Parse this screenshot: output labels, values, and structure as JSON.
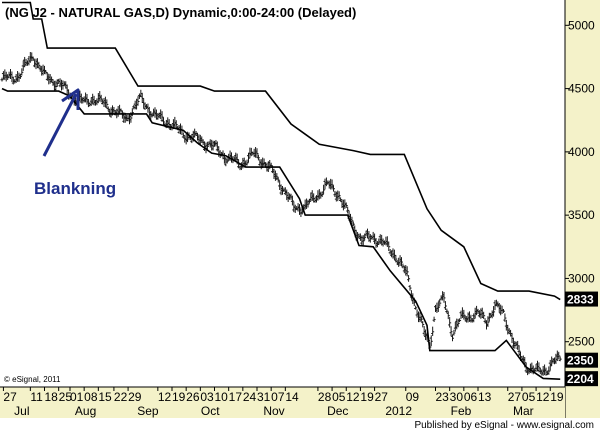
{
  "window": {
    "title": "(NG J2 - NATURAL GAS,D) Dynamic,0:00-24:00 (Delayed)",
    "copyright": "© eSignal, 2011",
    "footer": "Published by eSignal - www.esignal.com"
  },
  "colors": {
    "background": "#ffffff",
    "price_bars": "#1a1a1a",
    "channel": "#000000",
    "annotation": "#1f2f8c",
    "axis_panel": "#f4f2c9",
    "label_box": "#000000"
  },
  "annotation": {
    "text": "Blankning",
    "arrow": "arrow-icon"
  },
  "chart_data": {
    "type": "line",
    "title": "(NG J2 - NATURAL GAS,D) Dynamic,0:00-24:00 (Delayed)",
    "ylim": [
      2150,
      5200
    ],
    "y_ticks": [
      2500,
      3000,
      3500,
      4000,
      4500,
      5000
    ],
    "y_tick_labels": [
      "2500",
      "3000",
      "3500",
      "4000",
      "4500",
      "5000"
    ],
    "price_labels": [
      {
        "value": 2833,
        "text": "2833"
      },
      {
        "value": 2350,
        "text": "2350"
      },
      {
        "value": 2204,
        "text": "2204"
      }
    ],
    "x_day_labels": [
      {
        "i": 1,
        "t": "27"
      },
      {
        "i": 20,
        "t": "11"
      },
      {
        "i": 30,
        "t": "18"
      },
      {
        "i": 40,
        "t": "25"
      },
      {
        "i": 48,
        "t": "01"
      },
      {
        "i": 58,
        "t": "08"
      },
      {
        "i": 68,
        "t": "15"
      },
      {
        "i": 79,
        "t": "22"
      },
      {
        "i": 89,
        "t": "29"
      },
      {
        "i": 110,
        "t": "12"
      },
      {
        "i": 120,
        "t": "19"
      },
      {
        "i": 130,
        "t": "26"
      },
      {
        "i": 140,
        "t": "03"
      },
      {
        "i": 150,
        "t": "10"
      },
      {
        "i": 160,
        "t": "17"
      },
      {
        "i": 170,
        "t": "24"
      },
      {
        "i": 180,
        "t": "31"
      },
      {
        "i": 190,
        "t": "07"
      },
      {
        "i": 200,
        "t": "14"
      },
      {
        "i": 223,
        "t": "28"
      },
      {
        "i": 233,
        "t": "05"
      },
      {
        "i": 243,
        "t": "12"
      },
      {
        "i": 253,
        "t": "19"
      },
      {
        "i": 263,
        "t": "27"
      },
      {
        "i": 285,
        "t": "09"
      },
      {
        "i": 306,
        "t": "23"
      },
      {
        "i": 316,
        "t": "30"
      },
      {
        "i": 326,
        "t": "06"
      },
      {
        "i": 336,
        "t": "13"
      },
      {
        "i": 357,
        "t": "27"
      },
      {
        "i": 367,
        "t": "05"
      },
      {
        "i": 377,
        "t": "12"
      },
      {
        "i": 387,
        "t": "19"
      }
    ],
    "x_month_labels": [
      {
        "i": 14,
        "t": "Jul"
      },
      {
        "i": 59,
        "t": "Aug"
      },
      {
        "i": 103,
        "t": "Sep"
      },
      {
        "i": 147,
        "t": "Oct"
      },
      {
        "i": 192,
        "t": "Nov"
      },
      {
        "i": 237,
        "t": "Dec"
      },
      {
        "i": 280,
        "t": "2012"
      },
      {
        "i": 324,
        "t": "Feb"
      },
      {
        "i": 368,
        "t": "Mar"
      }
    ],
    "close_path": [
      [
        0,
        4570
      ],
      [
        12,
        4600
      ],
      [
        22,
        4760
      ],
      [
        30,
        4600
      ],
      [
        40,
        4540
      ],
      [
        50,
        4440
      ],
      [
        58,
        4390
      ],
      [
        64,
        4420
      ],
      [
        72,
        4380
      ],
      [
        82,
        4300
      ],
      [
        88,
        4260
      ],
      [
        98,
        4420
      ],
      [
        108,
        4280
      ],
      [
        118,
        4230
      ],
      [
        128,
        4140
      ],
      [
        138,
        4100
      ],
      [
        148,
        4050
      ],
      [
        158,
        3960
      ],
      [
        168,
        3900
      ],
      [
        178,
        3980
      ],
      [
        186,
        3910
      ],
      [
        196,
        3760
      ],
      [
        206,
        3560
      ],
      [
        214,
        3560
      ],
      [
        222,
        3650
      ],
      [
        230,
        3740
      ],
      [
        238,
        3660
      ],
      [
        246,
        3460
      ],
      [
        254,
        3300
      ],
      [
        262,
        3330
      ],
      [
        270,
        3270
      ],
      [
        278,
        3180
      ],
      [
        286,
        3020
      ],
      [
        292,
        2780
      ],
      [
        298,
        2570
      ],
      [
        302,
        2470
      ],
      [
        306,
        2760
      ],
      [
        312,
        2830
      ],
      [
        318,
        2570
      ],
      [
        324,
        2680
      ],
      [
        330,
        2700
      ],
      [
        336,
        2720
      ],
      [
        342,
        2660
      ],
      [
        348,
        2780
      ],
      [
        354,
        2720
      ],
      [
        358,
        2600
      ],
      [
        362,
        2470
      ],
      [
        366,
        2380
      ],
      [
        372,
        2290
      ],
      [
        378,
        2260
      ],
      [
        384,
        2280
      ],
      [
        390,
        2340
      ],
      [
        394,
        2360
      ]
    ],
    "upper_channel": [
      [
        0,
        5180
      ],
      [
        20,
        5180
      ],
      [
        22,
        5050
      ],
      [
        28,
        5050
      ],
      [
        32,
        4820
      ],
      [
        80,
        4820
      ],
      [
        96,
        4520
      ],
      [
        140,
        4520
      ],
      [
        150,
        4480
      ],
      [
        186,
        4480
      ],
      [
        204,
        4220
      ],
      [
        214,
        4140
      ],
      [
        224,
        4060
      ],
      [
        248,
        4010
      ],
      [
        260,
        3980
      ],
      [
        284,
        3980
      ],
      [
        300,
        3550
      ],
      [
        310,
        3380
      ],
      [
        326,
        3250
      ],
      [
        338,
        2960
      ],
      [
        350,
        2900
      ],
      [
        372,
        2900
      ],
      [
        390,
        2860
      ],
      [
        394,
        2833
      ]
    ],
    "lower_channel": [
      [
        0,
        4500
      ],
      [
        4,
        4480
      ],
      [
        40,
        4480
      ],
      [
        48,
        4440
      ],
      [
        58,
        4300
      ],
      [
        102,
        4300
      ],
      [
        106,
        4230
      ],
      [
        128,
        4170
      ],
      [
        138,
        4070
      ],
      [
        148,
        3990
      ],
      [
        158,
        3970
      ],
      [
        172,
        3880
      ],
      [
        196,
        3880
      ],
      [
        210,
        3630
      ],
      [
        214,
        3500
      ],
      [
        244,
        3500
      ],
      [
        252,
        3260
      ],
      [
        262,
        3250
      ],
      [
        274,
        3060
      ],
      [
        292,
        2820
      ],
      [
        300,
        2630
      ],
      [
        302,
        2430
      ],
      [
        348,
        2430
      ],
      [
        356,
        2510
      ],
      [
        362,
        2420
      ],
      [
        370,
        2300
      ],
      [
        382,
        2210
      ],
      [
        394,
        2204
      ]
    ]
  }
}
